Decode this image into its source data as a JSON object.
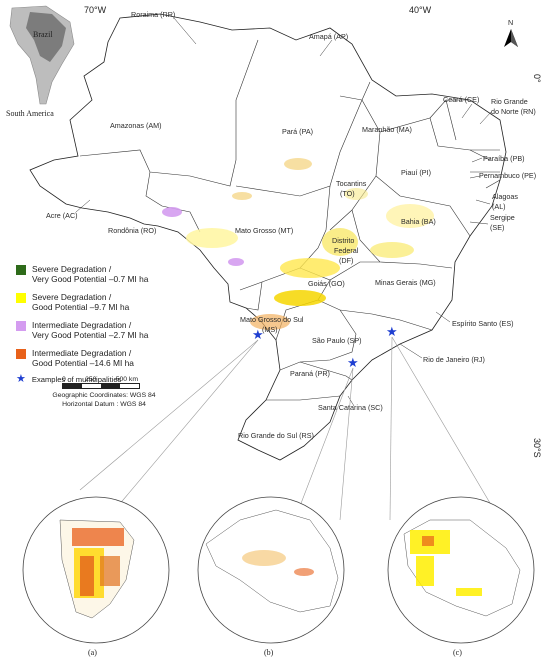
{
  "coords": {
    "lon_left": "70°W",
    "lon_right": "40°W",
    "lat_top": "0°",
    "lat_bottom": "30°S"
  },
  "north_arrow": {
    "label": "N",
    "icon": "north-arrow-icon"
  },
  "locator": {
    "country": "Brazil",
    "continent": "South America"
  },
  "states": [
    "Roraima (RR)",
    "Amapá (AP)",
    "Amazonas (AM)",
    "Pará (PA)",
    "Maranhão (MA)",
    "Ceará (CE)",
    "Rio Grande",
    "do Norte (RN)",
    "Piauí (PI)",
    "Paraíba (PB)",
    "Pernambuco (PE)",
    "Alagoas",
    "(AL)",
    "Sergipe",
    "(SE)",
    "Bahia (BA)",
    "Tocantins",
    "(TO)",
    "Acre (AC)",
    "Rondônia (RO)",
    "Mato Grosso (MT)",
    "Distrito",
    "Federal",
    "(DF)",
    "Goiás (GO)",
    "Minas Gerais (MG)",
    "Espírito Santo (ES)",
    "Mato Grosso do Sul",
    "(MS)",
    "São Paulo (SP)",
    "Rio de Janeiro (RJ)",
    "Paraná (PR)",
    "Santa Catarina (SC)",
    "Rio Grande do Sul (RS)"
  ],
  "legend": [
    {
      "lines": [
        "Severe Degradation /",
        "Very Good Potential –0.7 MI ha"
      ],
      "color": "#2e6b1a"
    },
    {
      "lines": [
        "Severe Degradation /",
        "Good Potential –9.7 MI ha"
      ],
      "color": "#ffff00"
    },
    {
      "lines": [
        "Intermediate Degradation /",
        "Very Good Potential –2.7 MI ha"
      ],
      "color": "#d49cf0"
    },
    {
      "lines": [
        "Intermediate Degradation /",
        "Good Potential –14.6 MI ha"
      ],
      "color": "#e8611a"
    }
  ],
  "municipalities_label": "Examples of municipalities",
  "marker_color": "#1f3fd1",
  "scale": {
    "ticks": [
      "0",
      "250",
      "500 km"
    ],
    "crs_line1": "Geographic Coordinates: WGS 84",
    "crs_line2": "Horizontal Datum : WGS 84"
  },
  "insets": [
    "(a)",
    "(b)",
    "(c)"
  ]
}
